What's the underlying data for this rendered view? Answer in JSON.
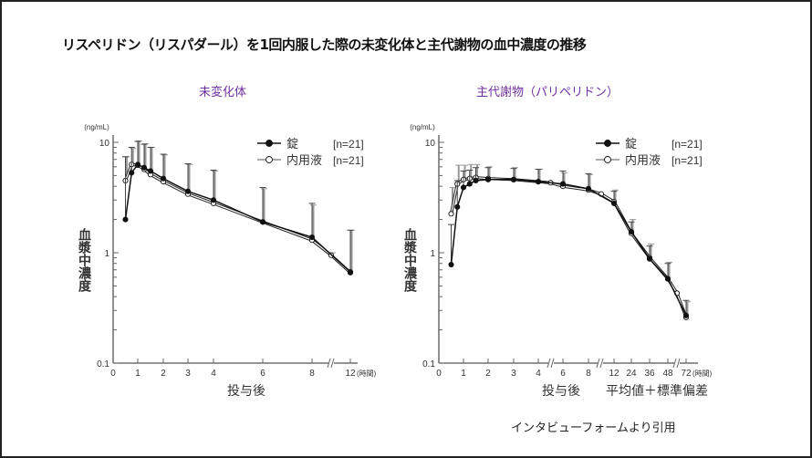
{
  "page": {
    "title": "リスペリドン（リスパダール）を1回内服した際の未変化体と主代謝物の血中濃度の推移",
    "credit": "インタビューフォームより引用",
    "subtitle_color": "#7030a0"
  },
  "chart_data": [
    {
      "type": "line",
      "title": "未変化体",
      "xlabel": "投与後",
      "ylabel": "血漿中濃度",
      "yunit": "(ng/mL)",
      "xunit": "(時間)",
      "yscale": "log",
      "ylim": [
        0.1,
        10
      ],
      "ytick_labels": [
        "0.1",
        "1",
        "10"
      ],
      "xticks": [
        0,
        1,
        2,
        3,
        4,
        6,
        8,
        12
      ],
      "xtick_labels": [
        "0",
        "1",
        "2",
        "3",
        "4",
        "6",
        "8",
        "12"
      ],
      "axis_break_between": [
        [
          8,
          12
        ]
      ],
      "legend": {
        "position": "top-right",
        "entries": [
          {
            "label": "錠",
            "n": "[n=21]",
            "marker": "filled-circle"
          },
          {
            "label": "内用液",
            "n": "[n=21]",
            "marker": "open-circle"
          }
        ]
      },
      "series": [
        {
          "name": "錠",
          "marker": "filled",
          "x": [
            0.5,
            0.75,
            1,
            1.25,
            1.5,
            2,
            3,
            4,
            6,
            8,
            12
          ],
          "y": [
            2.0,
            5.3,
            6.3,
            5.9,
            5.5,
            4.7,
            3.6,
            3.0,
            1.9,
            1.38,
            0.67
          ],
          "sd_upper": [
            7.4,
            9.0,
            10.2,
            9.6,
            9.0,
            7.8,
            6.4,
            5.6,
            3.9,
            2.8,
            1.6
          ]
        },
        {
          "name": "内用液",
          "marker": "open",
          "x": [
            0.5,
            0.75,
            1,
            1.25,
            1.5,
            2,
            3,
            4,
            6,
            8,
            10,
            12
          ],
          "y": [
            4.5,
            6.3,
            6.2,
            5.7,
            5.1,
            4.4,
            3.4,
            2.8,
            1.9,
            1.3,
            0.95,
            0.66
          ],
          "sd_upper": [
            7.4,
            8.8,
            10.3,
            9.7,
            9.0,
            7.7,
            6.3,
            5.5,
            3.8,
            2.7,
            1.0,
            1.6
          ]
        }
      ]
    },
    {
      "type": "line",
      "title": "主代謝物（パリペリドン）",
      "xlabel": "投与後",
      "ylabel": "血漿中濃度",
      "yunit": "(ng/mL)",
      "xunit": "(時間)",
      "note": "平均値＋標準偏差",
      "yscale": "log",
      "ylim": [
        0.1,
        10
      ],
      "ytick_labels": [
        "0.1",
        "1",
        "10"
      ],
      "xticks": [
        0,
        1,
        2,
        3,
        4,
        6,
        8,
        12,
        24,
        36,
        48,
        72
      ],
      "xtick_labels": [
        "0",
        "1",
        "2",
        "3",
        "4",
        "6",
        "8",
        "12",
        "24",
        "36",
        "48",
        "72"
      ],
      "axis_break_between": [
        [
          4,
          6
        ],
        [
          8,
          12
        ],
        [
          48,
          72
        ]
      ],
      "legend": {
        "position": "top-right",
        "entries": [
          {
            "label": "錠",
            "n": "[n=21]",
            "marker": "filled-circle"
          },
          {
            "label": "内用液",
            "n": "[n=21]",
            "marker": "open-circle"
          }
        ]
      },
      "series": [
        {
          "name": "錠",
          "marker": "filled",
          "x": [
            0.5,
            0.75,
            1,
            1.25,
            1.5,
            2,
            3,
            4,
            6,
            8,
            12,
            24,
            36,
            48,
            72
          ],
          "y": [
            0.78,
            2.6,
            3.9,
            4.2,
            4.5,
            4.6,
            4.6,
            4.4,
            4.2,
            3.8,
            2.8,
            1.55,
            0.88,
            0.58,
            0.27
          ],
          "sd_upper": [
            1.8,
            4.5,
            5.5,
            5.6,
            5.9,
            5.9,
            5.8,
            5.7,
            5.5,
            5.2,
            3.6,
            1.9,
            1.15,
            0.8,
            0.37
          ]
        },
        {
          "name": "内用液",
          "marker": "open",
          "x": [
            0.5,
            0.75,
            1,
            1.25,
            1.5,
            2,
            3,
            4,
            5,
            6,
            8,
            10,
            12,
            24,
            36,
            48,
            60,
            72
          ],
          "y": [
            2.25,
            4.2,
            4.6,
            4.7,
            4.8,
            4.7,
            4.6,
            4.4,
            4.3,
            4.0,
            3.7,
            3.4,
            2.9,
            1.5,
            0.9,
            0.58,
            0.43,
            0.26
          ],
          "sd_upper": [
            3.9,
            6.2,
            6.2,
            6.3,
            6.3,
            6.0,
            5.9,
            5.7,
            4.3,
            5.3,
            5.1,
            3.4,
            3.7,
            2.0,
            1.2,
            0.82,
            0.43,
            0.36
          ]
        }
      ]
    }
  ]
}
